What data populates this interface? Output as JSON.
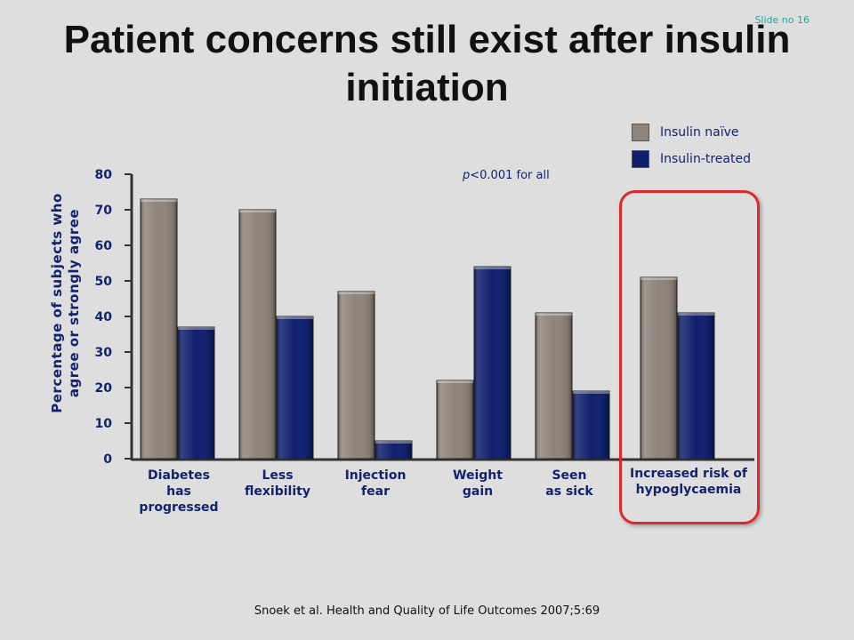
{
  "slide_no": "Slide no 16",
  "title": "Patient concerns still exist after insulin initiation",
  "legend": [
    {
      "label": "Insulin naïve",
      "color": "#8f847a"
    },
    {
      "label": "Insulin-treated",
      "color": "#0f1f6e"
    }
  ],
  "p_note": {
    "italic": "p",
    "rest": "<0.001 for all"
  },
  "citation": "Snoek et al. Health and Quality of Life Outcomes 2007;5:69",
  "chart_data": {
    "type": "bar",
    "categories": [
      "Diabetes\nhas\nprogressed",
      "Less\nflexibility",
      "Injection\nfear",
      "Weight\ngain",
      "Seen\nas sick",
      "Increased risk of\nhypoglycaemia"
    ],
    "series": [
      {
        "name": "Insulin naïve",
        "values": [
          73,
          70,
          47,
          22,
          41,
          51
        ],
        "color": "#8f847a"
      },
      {
        "name": "Insulin-treated",
        "values": [
          37,
          40,
          5,
          54,
          19,
          41
        ],
        "color": "#0f1f6e"
      }
    ],
    "ylabel": "Percentage of subjects who agree or strongly agree",
    "ylim": [
      0,
      80
    ],
    "yticks": [
      0,
      10,
      20,
      30,
      40,
      50,
      60,
      70,
      80
    ],
    "annotation": "p<0.001 for all",
    "highlighted_category": "Increased risk of\nhypoglycaemia",
    "grid": false
  }
}
